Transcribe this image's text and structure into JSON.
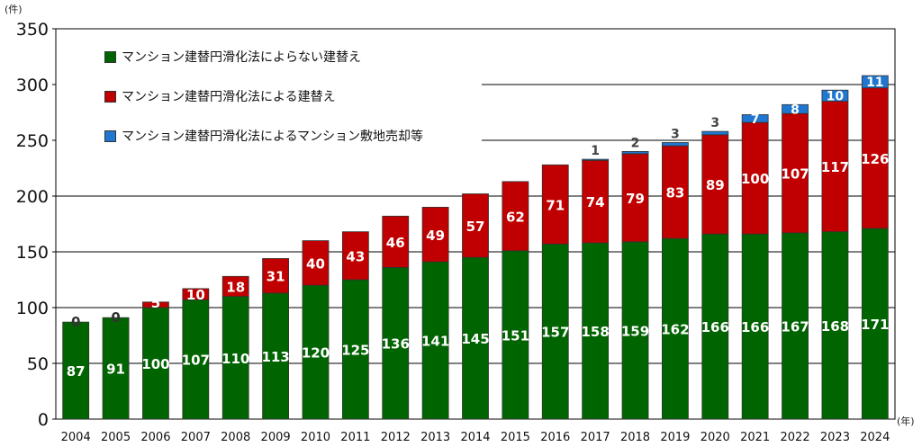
{
  "chart_data": {
    "type": "bar",
    "stacked": true,
    "y_unit_label": "(件)",
    "x_unit_label": "(年)",
    "ylim": [
      0,
      350
    ],
    "yticks": [
      0,
      50,
      100,
      150,
      200,
      250,
      300,
      350
    ],
    "grid": "horizontal",
    "legend_position": "top-left",
    "categories": [
      "2004",
      "2005",
      "2006",
      "2007",
      "2008",
      "2009",
      "2010",
      "2011",
      "2012",
      "2013",
      "2014",
      "2015",
      "2016",
      "2017",
      "2018",
      "2019",
      "2020",
      "2021",
      "2022",
      "2023",
      "2024"
    ],
    "series": [
      {
        "name": "マンション建替円滑化法によらない建替え",
        "color": "#006400",
        "label_color": "#ffffff",
        "values": [
          87,
          91,
          100,
          107,
          110,
          113,
          120,
          125,
          136,
          141,
          145,
          151,
          157,
          158,
          159,
          162,
          166,
          166,
          167,
          168,
          171
        ]
      },
      {
        "name": "マンション建替円滑化法による建替え",
        "color": "#c00000",
        "label_color": "#ffffff",
        "values": [
          0,
          0,
          5,
          10,
          18,
          31,
          40,
          43,
          46,
          49,
          57,
          62,
          71,
          74,
          79,
          83,
          89,
          100,
          107,
          117,
          126
        ]
      },
      {
        "name": "マンション建替円滑化法によるマンション敷地売却等",
        "color": "#1f77d0",
        "label_color": "#ffffff",
        "values": [
          0,
          0,
          0,
          0,
          0,
          0,
          0,
          0,
          0,
          0,
          0,
          0,
          0,
          1,
          2,
          3,
          3,
          7,
          8,
          10,
          11
        ]
      }
    ],
    "data_labels": {
      "series0": [
        "87",
        "91",
        "100",
        "107",
        "110",
        "113",
        "120",
        "125",
        "136",
        "141",
        "145",
        "151",
        "157",
        "158",
        "159",
        "162",
        "166",
        "166",
        "167",
        "168",
        "171"
      ],
      "series1": [
        "0",
        "0",
        "5",
        "10",
        "18",
        "31",
        "40",
        "43",
        "46",
        "49",
        "57",
        "62",
        "71",
        "74",
        "79",
        "83",
        "89",
        "100",
        "107",
        "117",
        "126"
      ],
      "series2": [
        "",
        "",
        "",
        "",
        "",
        "",
        "",
        "",
        "",
        "",
        "",
        "",
        "",
        "1",
        "2",
        "3",
        "3",
        "7",
        "8",
        "10",
        "11"
      ]
    }
  }
}
